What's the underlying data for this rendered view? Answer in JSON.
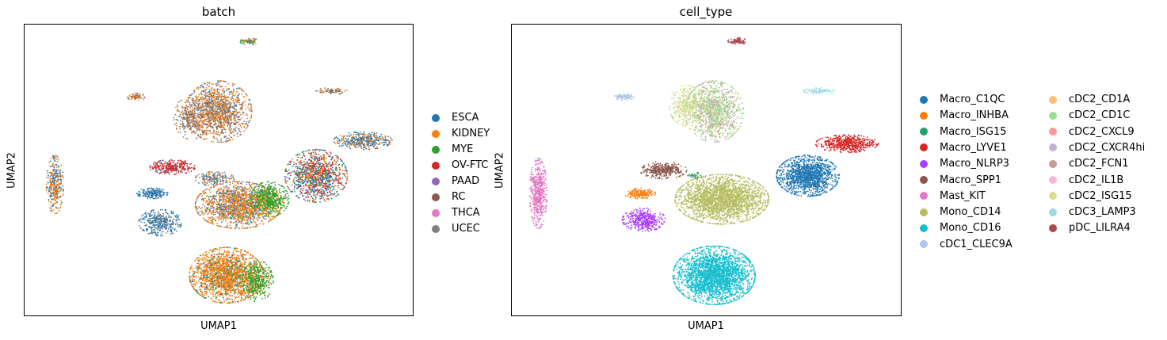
{
  "chart_data": [
    {
      "type": "scatter",
      "title": "batch",
      "xlabel": "UMAP1",
      "ylabel": "UMAP2",
      "grid": false,
      "ticks": false,
      "legend_position": "right",
      "legend": [
        {
          "label": "ESCA",
          "color": "#1f77b4"
        },
        {
          "label": "KIDNEY",
          "color": "#ff7f0e"
        },
        {
          "label": "MYE",
          "color": "#2ca02c"
        },
        {
          "label": "OV-FTC",
          "color": "#d62728"
        },
        {
          "label": "PAAD",
          "color": "#9467bd"
        },
        {
          "label": "RC",
          "color": "#8c564b"
        },
        {
          "label": "THCA",
          "color": "#e377c2"
        },
        {
          "label": "UCEC",
          "color": "#7f7f7f"
        }
      ],
      "clusters": [
        {
          "cx": 0.58,
          "cy": 0.06,
          "rx": 0.025,
          "ry": 0.012,
          "n": 120,
          "mix": {
            "MYE": 0.35,
            "ESCA": 0.2,
            "UCEC": 0.25,
            "KIDNEY": 0.2
          }
        },
        {
          "cx": 0.29,
          "cy": 0.25,
          "rx": 0.025,
          "ry": 0.012,
          "n": 120,
          "mix": {
            "UCEC": 0.4,
            "KIDNEY": 0.4,
            "RC": 0.2
          }
        },
        {
          "cx": 0.79,
          "cy": 0.23,
          "rx": 0.04,
          "ry": 0.012,
          "n": 120,
          "mix": {
            "UCEC": 0.4,
            "KIDNEY": 0.3,
            "RC": 0.3
          }
        },
        {
          "cx": 0.5,
          "cy": 0.3,
          "rx": 0.085,
          "ry": 0.105,
          "n": 2200,
          "mix": {
            "KIDNEY": 0.45,
            "UCEC": 0.35,
            "ESCA": 0.1,
            "RC": 0.1
          }
        },
        {
          "cx": 0.43,
          "cy": 0.32,
          "rx": 0.045,
          "ry": 0.075,
          "n": 500,
          "mix": {
            "UCEC": 0.6,
            "KIDNEY": 0.25,
            "RC": 0.15
          }
        },
        {
          "cx": 0.87,
          "cy": 0.4,
          "rx": 0.075,
          "ry": 0.03,
          "n": 700,
          "mix": {
            "ESCA": 0.5,
            "KIDNEY": 0.3,
            "UCEC": 0.2
          }
        },
        {
          "cx": 0.08,
          "cy": 0.55,
          "rx": 0.022,
          "ry": 0.1,
          "n": 600,
          "mix": {
            "KIDNEY": 0.5,
            "ESCA": 0.35,
            "UCEC": 0.15
          }
        },
        {
          "cx": 0.38,
          "cy": 0.49,
          "rx": 0.06,
          "ry": 0.025,
          "n": 500,
          "mix": {
            "OV-FTC": 0.8,
            "ESCA": 0.1,
            "UCEC": 0.1
          }
        },
        {
          "cx": 0.49,
          "cy": 0.53,
          "rx": 0.05,
          "ry": 0.025,
          "n": 300,
          "mix": {
            "UCEC": 0.6,
            "ESCA": 0.2,
            "KIDNEY": 0.2
          }
        },
        {
          "cx": 0.75,
          "cy": 0.52,
          "rx": 0.08,
          "ry": 0.09,
          "n": 1800,
          "mix": {
            "OV-FTC": 0.3,
            "ESCA": 0.35,
            "KIDNEY": 0.15,
            "UCEC": 0.1,
            "MYE": 0.1
          }
        },
        {
          "cx": 0.33,
          "cy": 0.58,
          "rx": 0.04,
          "ry": 0.018,
          "n": 300,
          "mix": {
            "ESCA": 0.9,
            "UCEC": 0.1
          }
        },
        {
          "cx": 0.55,
          "cy": 0.62,
          "rx": 0.11,
          "ry": 0.08,
          "n": 2800,
          "mix": {
            "KIDNEY": 0.55,
            "UCEC": 0.25,
            "ESCA": 0.1,
            "MYE": 0.05,
            "PAAD": 0.05
          }
        },
        {
          "cx": 0.63,
          "cy": 0.6,
          "rx": 0.05,
          "ry": 0.06,
          "n": 900,
          "mix": {
            "MYE": 0.85,
            "KIDNEY": 0.15
          }
        },
        {
          "cx": 0.35,
          "cy": 0.68,
          "rx": 0.055,
          "ry": 0.045,
          "n": 600,
          "mix": {
            "ESCA": 0.6,
            "UCEC": 0.4
          }
        },
        {
          "cx": 0.52,
          "cy": 0.86,
          "rx": 0.095,
          "ry": 0.095,
          "n": 3200,
          "mix": {
            "KIDNEY": 0.75,
            "ESCA": 0.1,
            "UCEC": 0.05,
            "MYE": 0.1
          }
        },
        {
          "cx": 0.6,
          "cy": 0.88,
          "rx": 0.04,
          "ry": 0.07,
          "n": 700,
          "mix": {
            "MYE": 0.85,
            "KIDNEY": 0.15
          }
        }
      ]
    },
    {
      "type": "scatter",
      "title": "cell_type",
      "xlabel": "UMAP1",
      "ylabel": "UMAP2",
      "grid": false,
      "ticks": false,
      "legend_position": "right",
      "legend": [
        {
          "label": "Macro_C1QC",
          "color": "#1f77b4"
        },
        {
          "label": "Macro_INHBA",
          "color": "#ff7f0e"
        },
        {
          "label": "Macro_ISG15",
          "color": "#279e68"
        },
        {
          "label": "Macro_LYVE1",
          "color": "#d62728"
        },
        {
          "label": "Macro_NLRP3",
          "color": "#aa40fc"
        },
        {
          "label": "Macro_SPP1",
          "color": "#8c564b"
        },
        {
          "label": "Mast_KIT",
          "color": "#e377c2"
        },
        {
          "label": "Mono_CD14",
          "color": "#b5bd61"
        },
        {
          "label": "Mono_CD16",
          "color": "#17becf"
        },
        {
          "label": "cDC1_CLEC9A",
          "color": "#aec7e8"
        },
        {
          "label": "cDC2_CD1A",
          "color": "#ffbb78"
        },
        {
          "label": "cDC2_CD1C",
          "color": "#98df8a"
        },
        {
          "label": "cDC2_CXCL9",
          "color": "#ff9896"
        },
        {
          "label": "cDC2_CXCR4hi",
          "color": "#c5b0d5"
        },
        {
          "label": "cDC2_FCN1",
          "color": "#c49c94"
        },
        {
          "label": "cDC2_IL1B",
          "color": "#f7b6d2"
        },
        {
          "label": "cDC2_ISG15",
          "color": "#dbdb8d"
        },
        {
          "label": "cDC3_LAMP3",
          "color": "#9edae5"
        },
        {
          "label": "pDC_LILRA4",
          "color": "#ad494a"
        }
      ],
      "clusters": [
        {
          "cx": 0.58,
          "cy": 0.06,
          "rx": 0.025,
          "ry": 0.012,
          "n": 150,
          "mix": {
            "pDC_LILRA4": 1
          }
        },
        {
          "cx": 0.29,
          "cy": 0.25,
          "rx": 0.025,
          "ry": 0.012,
          "n": 150,
          "mix": {
            "cDC1_CLEC9A": 1
          }
        },
        {
          "cx": 0.79,
          "cy": 0.23,
          "rx": 0.04,
          "ry": 0.012,
          "n": 150,
          "mix": {
            "cDC3_LAMP3": 1
          }
        },
        {
          "cx": 0.52,
          "cy": 0.3,
          "rx": 0.075,
          "ry": 0.105,
          "n": 2000,
          "mix": {
            "cDC2_CD1C": 0.45,
            "cDC2_FCN1": 0.25,
            "cDC2_CXCR4hi": 0.15,
            "cDC2_ISG15": 0.15
          }
        },
        {
          "cx": 0.45,
          "cy": 0.28,
          "rx": 0.045,
          "ry": 0.07,
          "n": 600,
          "mix": {
            "cDC2_ISG15": 0.8,
            "cDC2_CD1C": 0.2
          }
        },
        {
          "cx": 0.86,
          "cy": 0.41,
          "rx": 0.08,
          "ry": 0.03,
          "n": 900,
          "mix": {
            "Macro_LYVE1": 1
          }
        },
        {
          "cx": 0.07,
          "cy": 0.58,
          "rx": 0.022,
          "ry": 0.12,
          "n": 900,
          "mix": {
            "Mast_KIT": 1
          }
        },
        {
          "cx": 0.39,
          "cy": 0.5,
          "rx": 0.06,
          "ry": 0.03,
          "n": 550,
          "mix": {
            "Macro_SPP1": 1
          }
        },
        {
          "cx": 0.47,
          "cy": 0.52,
          "rx": 0.02,
          "ry": 0.012,
          "n": 60,
          "mix": {
            "Macro_ISG15": 1
          }
        },
        {
          "cx": 0.76,
          "cy": 0.52,
          "rx": 0.08,
          "ry": 0.07,
          "n": 2200,
          "mix": {
            "Macro_C1QC": 1
          }
        },
        {
          "cx": 0.33,
          "cy": 0.58,
          "rx": 0.04,
          "ry": 0.018,
          "n": 300,
          "mix": {
            "Macro_INHBA": 1
          }
        },
        {
          "cx": 0.54,
          "cy": 0.6,
          "rx": 0.12,
          "ry": 0.085,
          "n": 3800,
          "mix": {
            "Mono_CD14": 1
          }
        },
        {
          "cx": 0.34,
          "cy": 0.67,
          "rx": 0.055,
          "ry": 0.04,
          "n": 700,
          "mix": {
            "Macro_NLRP3": 1
          }
        },
        {
          "cx": 0.52,
          "cy": 0.86,
          "rx": 0.105,
          "ry": 0.1,
          "n": 4200,
          "mix": {
            "Mono_CD16": 1
          }
        }
      ]
    }
  ]
}
